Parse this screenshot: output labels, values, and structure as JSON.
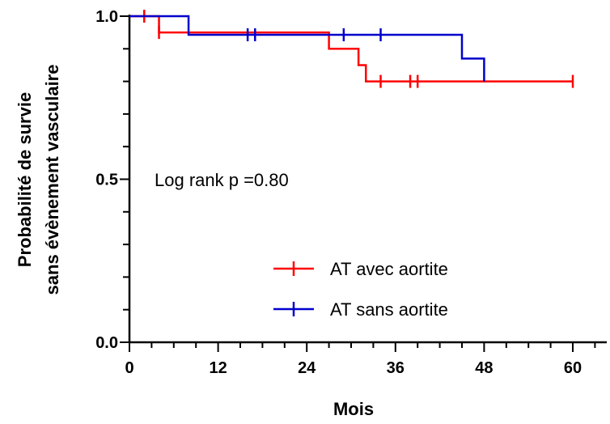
{
  "chart_data": {
    "type": "line",
    "subtype": "kaplan-meier step",
    "xlabel": "Mois",
    "ylabel_lines": [
      "Probabilité de survie",
      "sans évènement vasculaire"
    ],
    "xlim": [
      0,
      63
    ],
    "ylim": [
      0,
      1.0
    ],
    "x_ticks": [
      0,
      12,
      24,
      36,
      48,
      60
    ],
    "x_tick_labels": [
      "0",
      "12",
      "24",
      "36",
      "48",
      "60"
    ],
    "x_minor_step": 3,
    "y_ticks": [
      0,
      0.5,
      1.0
    ],
    "y_tick_labels": [
      "0.0",
      "0.5",
      "1.0"
    ],
    "y_minor_step": 0.1,
    "annotation": "Log rank p =0.80",
    "legend_position": "bottom-right",
    "series": [
      {
        "name": "AT avec aortite",
        "color": "#ff0000",
        "steps": [
          [
            0,
            1.0
          ],
          [
            4,
            0.95
          ],
          [
            27,
            0.9
          ],
          [
            31,
            0.85
          ],
          [
            32,
            0.8
          ],
          [
            60,
            0.8
          ]
        ],
        "censored": [
          [
            2,
            1.0
          ],
          [
            4,
            0.95
          ],
          [
            34,
            0.8
          ],
          [
            38,
            0.8
          ],
          [
            39,
            0.8
          ],
          [
            60,
            0.8
          ]
        ]
      },
      {
        "name": "AT sans aortite",
        "color": "#0000cc",
        "steps": [
          [
            0,
            1.0
          ],
          [
            8,
            0.943
          ],
          [
            45,
            0.87
          ],
          [
            48,
            0.8
          ]
        ],
        "censored": [
          [
            16,
            0.943
          ],
          [
            17,
            0.943
          ],
          [
            29,
            0.943
          ],
          [
            34,
            0.943
          ]
        ]
      }
    ]
  }
}
